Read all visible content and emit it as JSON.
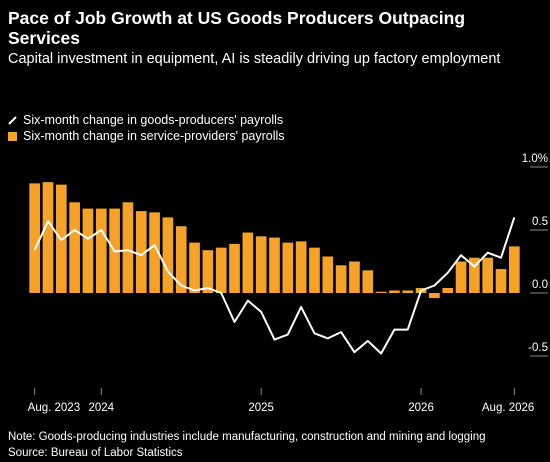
{
  "chart_data": {
    "type": "bar-line",
    "title": "Pace of Job Growth at US Goods Producers Outpacing Services",
    "subtitle": "Capital investment in equipment, AI is steadily driving up factory employment",
    "categories": [
      "Aug. 2023",
      null,
      null,
      null,
      null,
      "2024",
      null,
      null,
      null,
      null,
      null,
      null,
      null,
      null,
      null,
      null,
      null,
      "2025",
      null,
      null,
      null,
      null,
      null,
      null,
      null,
      null,
      null,
      null,
      null,
      "2026",
      null,
      null,
      null,
      null,
      null,
      null,
      "Aug. 2026"
    ],
    "series": [
      {
        "name": "Six-month change in goods-producers' payrolls",
        "color": "#ffffff",
        "type": "line",
        "values": [
          0.34,
          0.57,
          0.42,
          0.5,
          0.43,
          0.5,
          0.33,
          0.34,
          0.3,
          0.38,
          0.17,
          0.06,
          0.02,
          0.04,
          0,
          -0.23,
          -0.06,
          -0.15,
          -0.37,
          -0.33,
          -0.11,
          -0.32,
          -0.36,
          -0.31,
          -0.47,
          -0.38,
          -0.48,
          -0.29,
          -0.29,
          0.02,
          0.06,
          0.16,
          0.3,
          0.21,
          0.32,
          0.28,
          0.6
        ]
      },
      {
        "name": "Six-month change in service-providers' payrolls",
        "color": "#f5a228",
        "type": "bar",
        "values": [
          0.87,
          0.88,
          0.86,
          0.72,
          0.67,
          0.67,
          0.67,
          0.72,
          0.65,
          0.64,
          0.6,
          0.53,
          0.4,
          0.34,
          0.36,
          0.39,
          0.48,
          0.45,
          0.44,
          0.4,
          0.41,
          0.36,
          0.29,
          0.22,
          0.25,
          0.18,
          0.01,
          0.02,
          0.02,
          0.04,
          -0.04,
          0.04,
          0.25,
          0.28,
          0.28,
          0.19,
          0.37
        ]
      }
    ],
    "ylim": [
      -0.73,
      1.0
    ],
    "yticks": [
      {
        "value": 1.0,
        "label": "1.0%"
      },
      0.5,
      {
        "value": 0,
        "label": "0.0"
      },
      -0.5
    ],
    "grid": false,
    "notes": [
      "Note: Goods-producing industries include manufacturing, construction and mining and logging",
      "Source: Bureau of Labor Statistics"
    ]
  }
}
